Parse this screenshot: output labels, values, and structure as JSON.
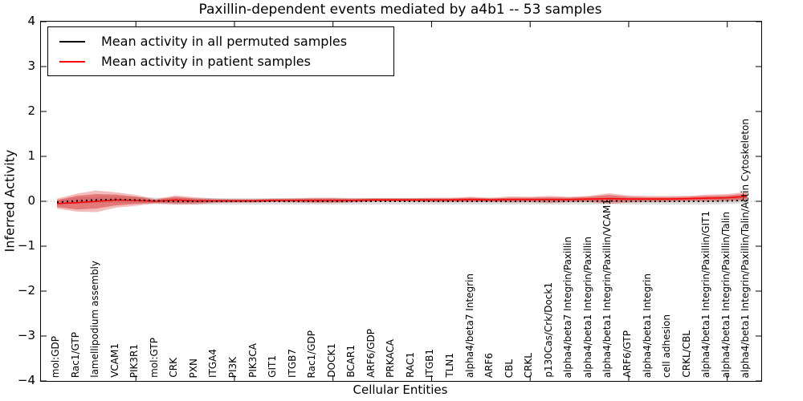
{
  "chart_data": {
    "type": "line",
    "title": "Paxillin-dependent events mediated by a4b1 -- 53 samples",
    "xlabel": "Cellular Entities",
    "ylabel": "Inferred Activity",
    "ylim": [
      -4,
      4
    ],
    "ytick_labels": [
      "4",
      "3",
      "2",
      "1",
      "0",
      "−1",
      "−2",
      "−3",
      "−4"
    ],
    "ytick_values": [
      4,
      3,
      2,
      1,
      0,
      -1,
      -2,
      -3,
      -4
    ],
    "xtick_major_indices": [
      4,
      9,
      14,
      19,
      24,
      29,
      34
    ],
    "grid": false,
    "legend_position": "upper left",
    "zero_line_color": "#9aa4b0",
    "categories": [
      "mol:GDP",
      "Rac1/GTP",
      "lamellipodium assembly",
      "VCAM1",
      "PIK3R1",
      "mol:GTP",
      "CRK",
      "PXN",
      "ITGA4",
      "PI3K",
      "PIK3CA",
      "GIT1",
      "ITGB7",
      "Rac1/GDP",
      "DOCK1",
      "BCAR1",
      "ARF6/GDP",
      "PRKACA",
      "RAC1",
      "ITGB1",
      "TLN1",
      "alpha4/beta7 Integrin",
      "ARF6",
      "CBL",
      "CRKL",
      "p130Cas/Crk/Dock1",
      "alpha4/beta7 Integrin/Paxillin",
      "alpha4/beta1 Integrin/Paxillin",
      "alpha4/beta1 Integrin/Paxillin/VCAM1",
      "ARF6/GTP",
      "alpha4/beta1 Integrin",
      "cell adhesion",
      "CRKL/CBL",
      "alpha4/beta1 Integrin/Paxillin/GIT1",
      "alpha4/beta1 Integrin/Paxillin/Talin",
      "alpha4/beta1 Integrin/Paxillin/Talin/Actin Cytoskeleton"
    ],
    "series": [
      {
        "name": "Mean activity in all permuted samples",
        "color": "#000000",
        "style": "dotted",
        "band_color": "#888888",
        "band_opacity": 0.3,
        "values": [
          -0.02,
          0.01,
          0.03,
          0.04,
          0.03,
          0.01,
          0.0,
          0.0,
          0.0,
          0.0,
          0.0,
          0.0,
          0.0,
          0.0,
          0.0,
          0.0,
          0.0,
          0.0,
          0.0,
          0.0,
          0.0,
          0.0,
          0.0,
          0.0,
          0.0,
          0.0,
          0.0,
          0.0,
          0.01,
          0.0,
          0.0,
          0.0,
          0.0,
          0.0,
          0.01,
          0.02
        ],
        "band": [
          0.05,
          0.07,
          0.07,
          0.07,
          0.07,
          0.07,
          0.07,
          0.07,
          0.07,
          0.07,
          0.07,
          0.07,
          0.07,
          0.07,
          0.07,
          0.07,
          0.07,
          0.07,
          0.07,
          0.07,
          0.07,
          0.07,
          0.07,
          0.07,
          0.07,
          0.07,
          0.07,
          0.07,
          0.07,
          0.07,
          0.07,
          0.07,
          0.07,
          0.07,
          0.07,
          0.06
        ]
      },
      {
        "name": "Mean activity in patient samples",
        "color": "#ff0000",
        "style": "solid",
        "band_color": "#d94040",
        "band_inner_opacity": 0.55,
        "band_outer_opacity": 0.35,
        "values": [
          -0.05,
          -0.03,
          0.0,
          0.03,
          0.02,
          0.0,
          0.03,
          0.01,
          0.01,
          0.01,
          0.01,
          0.02,
          0.02,
          0.02,
          0.02,
          0.02,
          0.03,
          0.03,
          0.03,
          0.03,
          0.03,
          0.04,
          0.03,
          0.04,
          0.04,
          0.04,
          0.04,
          0.05,
          0.06,
          0.05,
          0.05,
          0.05,
          0.06,
          0.07,
          0.08,
          0.11
        ],
        "band_inner": [
          0.08,
          0.15,
          0.16,
          0.12,
          0.08,
          0.03,
          0.07,
          0.05,
          0.03,
          0.03,
          0.03,
          0.03,
          0.03,
          0.04,
          0.04,
          0.03,
          0.03,
          0.03,
          0.03,
          0.03,
          0.03,
          0.04,
          0.03,
          0.04,
          0.04,
          0.05,
          0.04,
          0.05,
          0.08,
          0.05,
          0.04,
          0.04,
          0.04,
          0.05,
          0.05,
          0.06
        ],
        "band_outer": [
          0.11,
          0.2,
          0.24,
          0.17,
          0.12,
          0.05,
          0.1,
          0.08,
          0.05,
          0.04,
          0.04,
          0.04,
          0.05,
          0.06,
          0.06,
          0.05,
          0.04,
          0.04,
          0.04,
          0.05,
          0.05,
          0.06,
          0.05,
          0.07,
          0.06,
          0.08,
          0.06,
          0.07,
          0.12,
          0.08,
          0.07,
          0.07,
          0.06,
          0.08,
          0.08,
          0.1
        ]
      }
    ]
  }
}
